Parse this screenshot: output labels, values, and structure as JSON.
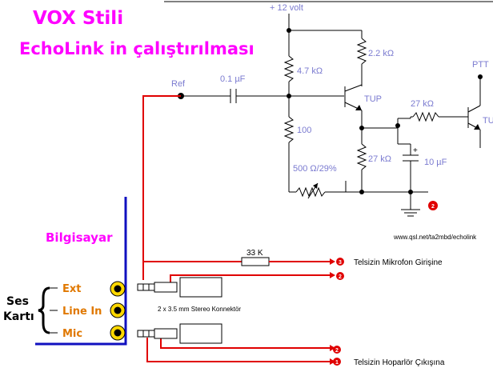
{
  "title": {
    "line1": "VOX Stili",
    "line2": "EchoLink in çalıştırılması"
  },
  "labels": {
    "supply": "+ 12 volt",
    "ptt": "PTT",
    "ref": "Ref",
    "bilgisayar": "Bilgisayar",
    "ses": "Ses",
    "karti": "Kartı",
    "url": "www.qsl.net/ta2mbd/echolink",
    "connector": "2 x 3.5 mm Stereo Konnektör",
    "mic_input": "Telsizin Mikrofon Girişine",
    "speaker_output": "Telsizin Hoparlör Çıkışına"
  },
  "components": {
    "c1": "0.1 µF",
    "r1": "4.7 kΩ",
    "r2": "2.2 kΩ",
    "r3": "100",
    "r4": "500 Ω/29%",
    "r5": "27 kΩ",
    "r6": "27 kΩ",
    "r7": "33 K",
    "c2": "10 µF",
    "c2_plus": "+",
    "q1": "TUP",
    "q2": "TUP"
  },
  "ports": [
    "Ext",
    "Line In",
    "Mic"
  ],
  "badges": {
    "ground": "2",
    "mic_tip": "3",
    "mic_ring": "2",
    "spk_ring": "2",
    "spk_tip": "1"
  },
  "colors": {
    "title": "#ff00ff",
    "component_label": "#7b7bd0",
    "signal_wire": "#e00000",
    "port_label": "#e07800",
    "port_jack": "#ffd800",
    "badge": "#e00000",
    "computer_border": "#1010c0"
  }
}
